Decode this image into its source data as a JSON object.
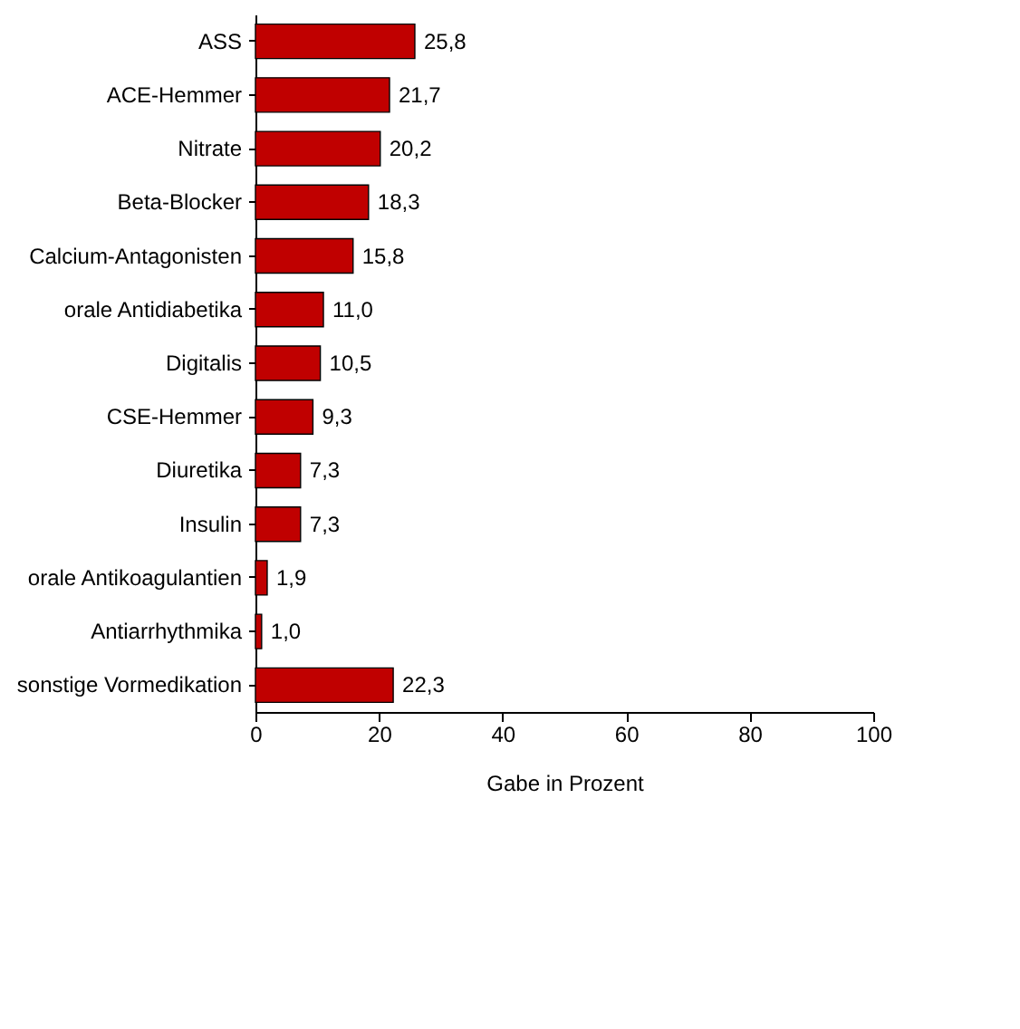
{
  "chart_data": {
    "type": "bar",
    "orientation": "horizontal",
    "xlabel": "Gabe in Prozent",
    "categories": [
      "ASS",
      "ACE-Hemmer",
      "Nitrate",
      "Beta-Blocker",
      "Calcium-Antagonisten",
      "orale Antidiabetika",
      "Digitalis",
      "CSE-Hemmer",
      "Diuretika",
      "Insulin",
      "orale Antikoagulantien",
      "Antiarrhythmika",
      "sonstige Vormedikation"
    ],
    "values": [
      25.8,
      21.7,
      20.2,
      18.3,
      15.8,
      11.0,
      10.5,
      9.3,
      7.3,
      7.3,
      1.9,
      1.0,
      22.3
    ],
    "value_labels": [
      "25,8",
      "21,7",
      "20,2",
      "18,3",
      "15,8",
      "11,0",
      "10,5",
      "9,3",
      "7,3",
      "7,3",
      "1,9",
      "1,0",
      "22,3"
    ],
    "color": "#c00000",
    "xlim": [
      0,
      100
    ],
    "xticks": [
      0,
      20,
      40,
      60,
      80,
      100
    ],
    "grid": false
  }
}
